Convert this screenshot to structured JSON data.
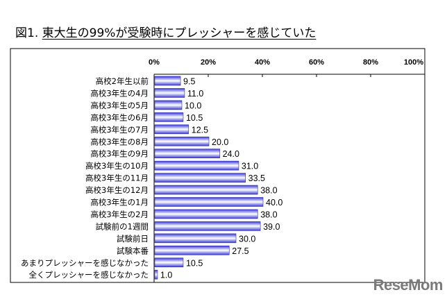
{
  "chart_data": {
    "type": "bar",
    "orientation": "horizontal",
    "title_prefix": "図1.",
    "title": "東大生の99%が受験時にプレッシャーを感じていた",
    "categories": [
      "高校2年生以前",
      "高校3年生の4月",
      "高校3年生の5月",
      "高校3年生の6月",
      "高校3年生の7月",
      "高校3年生の8月",
      "高校3年生の9月",
      "高校3年生の10月",
      "高校3年生の11月",
      "高校3年生の12月",
      "高校3年生の1月",
      "高校3年生の2月",
      "試験前の1週間",
      "試験前日",
      "試験本番",
      "あまりプレッシャーを感じなかった",
      "全くプレッシャーを感じなかった"
    ],
    "values": [
      9.5,
      11.0,
      10.0,
      10.5,
      12.5,
      20.0,
      24.0,
      31.0,
      33.5,
      38.0,
      40.0,
      38.0,
      39.0,
      30.0,
      27.5,
      10.5,
      1.0
    ],
    "value_labels": [
      "9.5",
      "11.0",
      "10.0",
      "10.5",
      "12.5",
      "20.0",
      "24.0",
      "31.0",
      "33.5",
      "38.0",
      "40.0",
      "38.0",
      "39.0",
      "30.0",
      "27.5",
      "10.5",
      "1.0"
    ],
    "xlim": [
      0,
      100
    ],
    "xticks": [
      "0%",
      "20%",
      "40%",
      "60%",
      "80%",
      "100%"
    ],
    "xlabel": "",
    "ylabel": "",
    "bar_color": "#3c3cd8"
  },
  "watermark": "ReseMom"
}
